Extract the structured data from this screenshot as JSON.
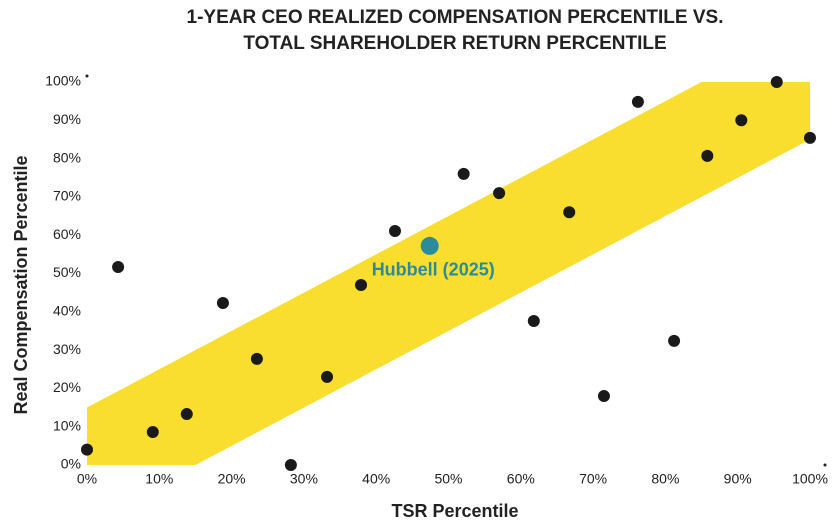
{
  "chart_data": {
    "type": "scatter",
    "title": [
      "1-YEAR CEO REALIZED COMPENSATION PERCENTILE VS.",
      "TOTAL SHAREHOLDER RETURN PERCENTILE"
    ],
    "x_label": "TSR Percentile",
    "y_label": "Real Compensation Percentile",
    "xlim": [
      0,
      100
    ],
    "ylim": [
      0,
      100
    ],
    "xticks": [
      {
        "value": 0,
        "label": "0%"
      },
      {
        "value": 10,
        "label": "10%"
      },
      {
        "value": 20,
        "label": "20%"
      },
      {
        "value": 30,
        "label": "30%"
      },
      {
        "value": 40,
        "label": "40%"
      },
      {
        "value": 50,
        "label": "50%"
      },
      {
        "value": 60,
        "label": "60%"
      },
      {
        "value": 70,
        "label": "70%"
      },
      {
        "value": 80,
        "label": "80%"
      },
      {
        "value": 90,
        "label": "90%"
      },
      {
        "value": 100,
        "label": "100%"
      }
    ],
    "yticks": [
      {
        "value": 0,
        "label": "0%"
      },
      {
        "value": 10,
        "label": "10%"
      },
      {
        "value": 20,
        "label": "20%"
      },
      {
        "value": 30,
        "label": "30%"
      },
      {
        "value": 40,
        "label": "40%"
      },
      {
        "value": 50,
        "label": "50%"
      },
      {
        "value": 60,
        "label": "60%"
      },
      {
        "value": 70,
        "label": "70%"
      },
      {
        "value": 80,
        "label": "80%"
      },
      {
        "value": 90,
        "label": "90%"
      },
      {
        "value": 100,
        "label": "100%"
      }
    ],
    "band": {
      "color": "#f9dd2f",
      "x": [
        0,
        85,
        100,
        100,
        15,
        0
      ],
      "y": [
        15,
        100,
        100,
        85,
        0,
        0
      ]
    },
    "series": [
      {
        "color": "#1a1a1a",
        "x": [
          0,
          4.3,
          9.1,
          13.8,
          18.8,
          23.5,
          28.2,
          33.2,
          37.9,
          42.6,
          52.1,
          57,
          61.8,
          66.7,
          71.5,
          76.2,
          81.2,
          85.8,
          90.5,
          95.4,
          100
        ],
        "values": [
          4,
          51.7,
          8.6,
          13.3,
          42.3,
          27.7,
          0,
          23,
          47,
          61.1,
          76,
          71,
          37.6,
          66,
          18,
          94.8,
          32.4,
          80.7,
          90,
          100,
          85.4
        ]
      }
    ],
    "highlight": {
      "name": "Hubbell (2025)",
      "color": "#2a8c9a",
      "x": 47.4,
      "value": 57.2
    }
  }
}
